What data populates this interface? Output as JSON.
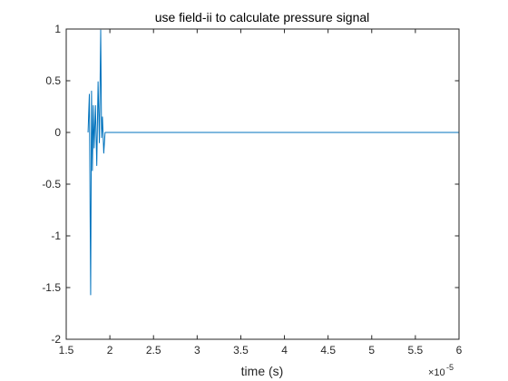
{
  "chart_data": {
    "type": "line",
    "title": "use field-ii to calculate pressure signal",
    "xlabel": "time (s)",
    "ylabel": "",
    "x_exponent_label": "×10",
    "x_exponent_power": "-5",
    "xlim": [
      1.5,
      6
    ],
    "ylim": [
      -2,
      1
    ],
    "xticks": [
      1.5,
      2,
      2.5,
      3,
      3.5,
      4,
      4.5,
      5,
      5.5,
      6
    ],
    "xtick_labels": [
      "1.5",
      "2",
      "2.5",
      "3",
      "3.5",
      "4",
      "4.5",
      "5",
      "5.5",
      "6"
    ],
    "yticks": [
      -2,
      -1.5,
      -1,
      -0.5,
      0,
      0.5,
      1
    ],
    "ytick_labels": [
      "-2",
      "-1.5",
      "-1",
      "-0.5",
      "0",
      "0.5",
      "1"
    ],
    "grid": false,
    "line_color": "#0072bd",
    "series": [
      {
        "x": [
          1.75,
          1.765,
          1.78,
          1.79,
          1.8,
          1.81,
          1.82,
          1.835,
          1.85,
          1.865,
          1.88,
          1.895,
          1.905,
          1.915,
          1.93,
          1.945,
          1.96,
          1.975,
          6.0
        ],
        "y": [
          0.0,
          0.37,
          -1.57,
          0.4,
          -0.37,
          0.26,
          -0.15,
          0.26,
          -0.32,
          0.49,
          -0.1,
          0.99,
          -0.05,
          0.15,
          -0.2,
          0.0,
          0.0,
          0.0,
          0.0
        ]
      }
    ]
  }
}
